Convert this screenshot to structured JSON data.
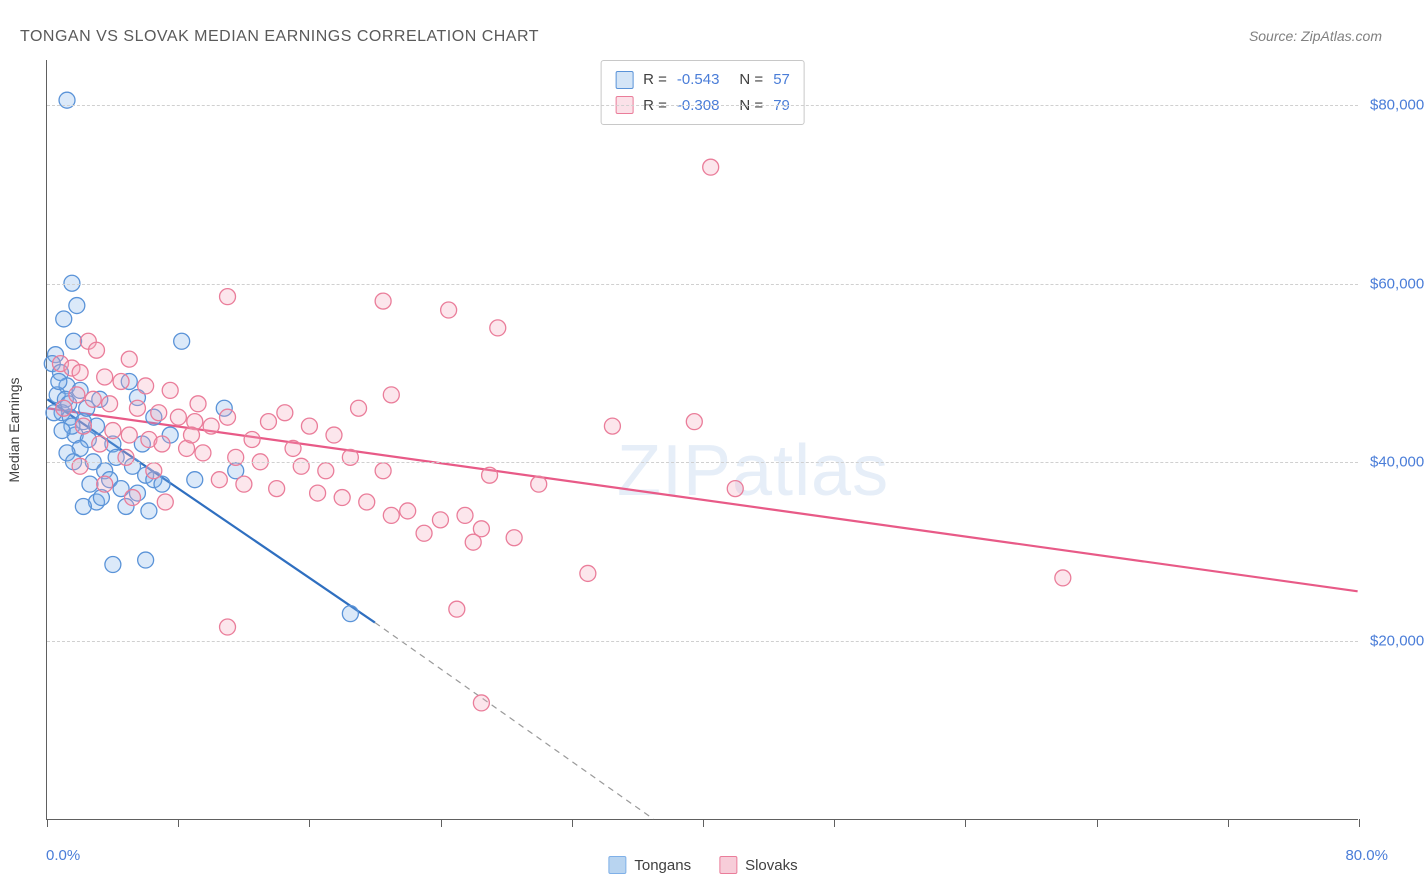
{
  "chart": {
    "type": "scatter",
    "title": "TONGAN VS SLOVAK MEDIAN EARNINGS CORRELATION CHART",
    "source": "Source: ZipAtlas.com",
    "watermark": "ZIPatlas",
    "ylabel": "Median Earnings",
    "background_color": "#ffffff",
    "grid_color": "#d0d0d0",
    "axis_color": "#606060",
    "text_color": "#404040",
    "tick_label_color": "#4a7dd8",
    "title_color": "#5a5a5a",
    "title_fontsize": 16,
    "label_fontsize": 14,
    "tick_fontsize": 15,
    "xlim": [
      0,
      80
    ],
    "ylim": [
      0,
      85000
    ],
    "x_start_label": "0.0%",
    "x_end_label": "80.0%",
    "x_tick_positions": [
      0,
      8,
      16,
      24,
      32,
      40,
      48,
      56,
      64,
      72,
      80
    ],
    "y_gridlines": [
      20000,
      40000,
      60000,
      80000
    ],
    "y_tick_labels": [
      "$20,000",
      "$40,000",
      "$60,000",
      "$80,000"
    ],
    "marker_radius": 8,
    "marker_stroke_width": 1.3,
    "marker_fill_opacity": 0.28,
    "trend_line_width": 2.2,
    "trend_ext_dash": "6,5",
    "series": [
      {
        "name": "Tongans",
        "fill_color": "#7fb0e8",
        "stroke_color": "#5a93d8",
        "line_color": "#2f6fc0",
        "stats": {
          "R": "-0.543",
          "N": "57"
        },
        "trend": {
          "x1": 0,
          "y1": 47000,
          "x2_solid": 20,
          "y2_solid": 22000,
          "x2_ext": 37,
          "y2_ext": 0
        },
        "points": [
          [
            1.2,
            80500
          ],
          [
            1.5,
            60000
          ],
          [
            1.8,
            57500
          ],
          [
            1.0,
            56000
          ],
          [
            1.6,
            53500
          ],
          [
            0.5,
            52000
          ],
          [
            0.3,
            51000
          ],
          [
            0.8,
            50000
          ],
          [
            1.2,
            48500
          ],
          [
            2.0,
            48000
          ],
          [
            0.6,
            47500
          ],
          [
            1.1,
            47000
          ],
          [
            3.2,
            47000
          ],
          [
            5.5,
            47200
          ],
          [
            8.2,
            53500
          ],
          [
            10.8,
            46000
          ],
          [
            0.9,
            45500
          ],
          [
            1.4,
            45000
          ],
          [
            2.2,
            44500
          ],
          [
            3.0,
            44000
          ],
          [
            5.0,
            49000
          ],
          [
            6.5,
            45000
          ],
          [
            1.7,
            43000
          ],
          [
            2.5,
            42500
          ],
          [
            4.0,
            42000
          ],
          [
            4.2,
            40500
          ],
          [
            5.2,
            39500
          ],
          [
            6.0,
            38500
          ],
          [
            6.5,
            38000
          ],
          [
            7.0,
            37500
          ],
          [
            2.8,
            40000
          ],
          [
            3.5,
            39000
          ],
          [
            3.8,
            38000
          ],
          [
            4.5,
            37000
          ],
          [
            5.5,
            36500
          ],
          [
            3.0,
            35500
          ],
          [
            2.2,
            35000
          ],
          [
            6.2,
            34500
          ],
          [
            1.5,
            44000
          ],
          [
            2.0,
            41500
          ],
          [
            1.3,
            46500
          ],
          [
            0.7,
            49000
          ],
          [
            0.4,
            45500
          ],
          [
            2.6,
            37500
          ],
          [
            3.3,
            36000
          ],
          [
            4.8,
            35000
          ],
          [
            5.8,
            42000
          ],
          [
            7.5,
            43000
          ],
          [
            11.5,
            39000
          ],
          [
            9.0,
            38000
          ],
          [
            4.0,
            28500
          ],
          [
            6.0,
            29000
          ],
          [
            18.5,
            23000
          ],
          [
            1.2,
            41000
          ],
          [
            2.4,
            46000
          ],
          [
            0.9,
            43500
          ],
          [
            1.6,
            40000
          ]
        ]
      },
      {
        "name": "Slovaks",
        "fill_color": "#f4a6bb",
        "stroke_color": "#ea7d9a",
        "line_color": "#e85a87",
        "stats": {
          "R": "-0.308",
          "N": "79"
        },
        "trend": {
          "x1": 0,
          "y1": 46000,
          "x2_solid": 80,
          "y2_solid": 25500,
          "x2_ext": 80,
          "y2_ext": 25500
        },
        "points": [
          [
            40.5,
            73000
          ],
          [
            11.0,
            58500
          ],
          [
            20.5,
            58000
          ],
          [
            24.5,
            57000
          ],
          [
            27.5,
            55000
          ],
          [
            2.5,
            53500
          ],
          [
            3.0,
            52500
          ],
          [
            5.0,
            51500
          ],
          [
            0.8,
            51000
          ],
          [
            1.5,
            50500
          ],
          [
            2.0,
            50000
          ],
          [
            3.5,
            49500
          ],
          [
            4.5,
            49000
          ],
          [
            6.0,
            48500
          ],
          [
            7.5,
            48000
          ],
          [
            1.8,
            47500
          ],
          [
            2.8,
            47000
          ],
          [
            3.8,
            46500
          ],
          [
            5.5,
            46000
          ],
          [
            6.8,
            45500
          ],
          [
            8.0,
            45000
          ],
          [
            9.0,
            44500
          ],
          [
            10.0,
            44000
          ],
          [
            14.5,
            45500
          ],
          [
            16.0,
            44000
          ],
          [
            19.0,
            46000
          ],
          [
            21.0,
            47500
          ],
          [
            17.5,
            43000
          ],
          [
            4.0,
            43500
          ],
          [
            5.0,
            43000
          ],
          [
            6.2,
            42500
          ],
          [
            7.0,
            42000
          ],
          [
            8.5,
            41500
          ],
          [
            9.5,
            41000
          ],
          [
            11.5,
            40500
          ],
          [
            13.0,
            40000
          ],
          [
            15.5,
            39500
          ],
          [
            17.0,
            39000
          ],
          [
            20.5,
            39000
          ],
          [
            13.5,
            44500
          ],
          [
            34.5,
            44000
          ],
          [
            39.5,
            44500
          ],
          [
            10.5,
            38000
          ],
          [
            12.0,
            37500
          ],
          [
            14.0,
            37000
          ],
          [
            16.5,
            36500
          ],
          [
            18.0,
            36000
          ],
          [
            19.5,
            35500
          ],
          [
            22.0,
            34500
          ],
          [
            25.5,
            34000
          ],
          [
            24.0,
            33500
          ],
          [
            26.5,
            32500
          ],
          [
            23.0,
            32000
          ],
          [
            21.0,
            34000
          ],
          [
            28.5,
            31500
          ],
          [
            26.0,
            31000
          ],
          [
            27.0,
            38500
          ],
          [
            30.0,
            37500
          ],
          [
            42.0,
            37000
          ],
          [
            62.0,
            27000
          ],
          [
            33.0,
            27500
          ],
          [
            11.0,
            21500
          ],
          [
            25.0,
            23500
          ],
          [
            26.5,
            13000
          ],
          [
            1.0,
            46000
          ],
          [
            2.2,
            44000
          ],
          [
            3.2,
            42000
          ],
          [
            4.8,
            40500
          ],
          [
            6.5,
            39000
          ],
          [
            8.8,
            43000
          ],
          [
            12.5,
            42500
          ],
          [
            15.0,
            41500
          ],
          [
            18.5,
            40500
          ],
          [
            2.0,
            39500
          ],
          [
            3.5,
            37500
          ],
          [
            5.2,
            36000
          ],
          [
            7.2,
            35500
          ],
          [
            9.2,
            46500
          ],
          [
            11.0,
            45000
          ]
        ]
      }
    ],
    "bottom_legend": [
      {
        "label": "Tongans",
        "fill": "#b8d4f0",
        "border": "#7fb0e8"
      },
      {
        "label": "Slovaks",
        "fill": "#f7cdd9",
        "border": "#ea7d9a"
      }
    ]
  }
}
